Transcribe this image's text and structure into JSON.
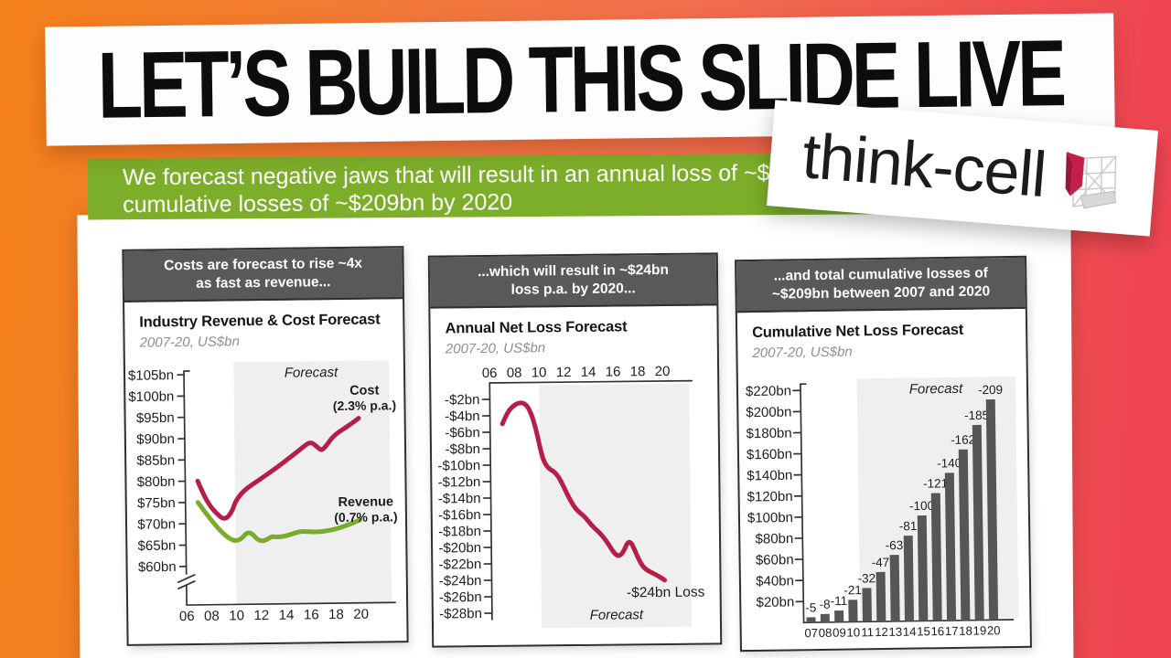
{
  "title_banner": {
    "text": "LET’S BUILD THIS SLIDE LIVE"
  },
  "brand_card": {
    "logo_text": "think-cell"
  },
  "subtitle_banner": {
    "line1": "We forecast negative jaws that will result in an annual loss of ~$24bn",
    "line2": "cumulative losses of ~$209bn by 2020",
    "bg_color": "#7cae2a"
  },
  "colors": {
    "panel_header_bg": "#595959",
    "cost_red": "#b51e47",
    "revenue_green": "#7aac2b",
    "bar_gray": "#565656",
    "forecast_shade": "#efefef",
    "background_left": "#f5811c",
    "background_right": "#ef4252"
  },
  "panels": [
    {
      "header_line1": "Costs are forecast to rise ~4x",
      "header_line2": "as fast as revenue...",
      "title": "Industry Revenue & Cost Forecast",
      "subtitle": "2007-20, US$bn"
    },
    {
      "header_line1": "...which will result in ~$24bn",
      "header_line2": "loss p.a. by 2020...",
      "title": "Annual Net Loss Forecast",
      "subtitle": "2007-20, US$bn"
    },
    {
      "header_line1": "...and total cumulative losses of",
      "header_line2": "~$209bn between 2007 and 2020",
      "title": "Cumulative Net Loss Forecast",
      "subtitle": "2007-20, US$bn"
    }
  ],
  "chart_data": [
    {
      "type": "line",
      "title": "Industry Revenue & Cost Forecast",
      "subtitle": "2007-20, US$bn",
      "y_tick_labels": [
        "$105bn",
        "$100bn",
        "$95bn",
        "$90bn",
        "$85bn",
        "$80bn",
        "$75bn",
        "$70bn",
        "$65bn",
        "$60bn"
      ],
      "y_tick_values": [
        105,
        100,
        95,
        90,
        85,
        80,
        75,
        70,
        65,
        60
      ],
      "x_tick_labels": [
        "06",
        "08",
        "10",
        "12",
        "14",
        "16",
        "18",
        "20"
      ],
      "x_tick_values": [
        2006,
        2008,
        2010,
        2012,
        2014,
        2016,
        2018,
        2020
      ],
      "ylim": [
        60,
        105
      ],
      "axis_break": true,
      "forecast_label": "Forecast",
      "forecast_start_year": 2010,
      "series": [
        {
          "name": "Cost",
          "annotation": "(2.3% p.a.)",
          "color": "#b51e47",
          "points": [
            [
              2007,
              80
            ],
            [
              2007.5,
              76.5
            ],
            [
              2008,
              74
            ],
            [
              2008.5,
              72.3
            ],
            [
              2009,
              71
            ],
            [
              2009.4,
              71.4
            ],
            [
              2009.8,
              73.2
            ],
            [
              2010,
              75
            ],
            [
              2010.5,
              77
            ],
            [
              2011,
              78.3
            ],
            [
              2012,
              80.2
            ],
            [
              2013,
              82.2
            ],
            [
              2014,
              84.3
            ],
            [
              2015,
              86.5
            ],
            [
              2015.8,
              88.4
            ],
            [
              2016.2,
              88.8
            ],
            [
              2016.7,
              87.5
            ],
            [
              2017,
              86.8
            ],
            [
              2017.4,
              88
            ],
            [
              2018,
              90.4
            ],
            [
              2019,
              92.2
            ],
            [
              2020,
              94.3
            ]
          ]
        },
        {
          "name": "Revenue",
          "annotation": "(0.7% p.a.)",
          "color": "#7aac2b",
          "points": [
            [
              2007,
              75
            ],
            [
              2007.5,
              73
            ],
            [
              2008,
              71
            ],
            [
              2008.5,
              69.2
            ],
            [
              2009,
              67.6
            ],
            [
              2009.5,
              66.4
            ],
            [
              2010,
              65.8
            ],
            [
              2010.5,
              66.4
            ],
            [
              2010.9,
              67.8
            ],
            [
              2011.3,
              67.6
            ],
            [
              2011.7,
              66.2
            ],
            [
              2012.1,
              65.7
            ],
            [
              2012.5,
              66
            ],
            [
              2012.9,
              66.8
            ],
            [
              2013.3,
              66.6
            ],
            [
              2014,
              66.8
            ],
            [
              2014.6,
              67.4
            ],
            [
              2015.2,
              67.9
            ],
            [
              2016,
              67.8
            ],
            [
              2016.6,
              67.7
            ],
            [
              2017.2,
              67.9
            ],
            [
              2018,
              68.3
            ],
            [
              2019,
              69.2
            ],
            [
              2020,
              70.4
            ]
          ]
        }
      ]
    },
    {
      "type": "line",
      "title": "Annual Net Loss Forecast",
      "subtitle": "2007-20, US$bn",
      "y_tick_labels": [
        "-$2bn",
        "-$4bn",
        "-$6bn",
        "-$8bn",
        "-$10bn",
        "-$12bn",
        "-$14bn",
        "-$16bn",
        "-$18bn",
        "-$20bn",
        "-$22bn",
        "-$24bn",
        "-$26bn",
        "-$28bn"
      ],
      "y_tick_values": [
        -2,
        -4,
        -6,
        -8,
        -10,
        -12,
        -14,
        -16,
        -18,
        -20,
        -22,
        -24,
        -26,
        -28
      ],
      "x_tick_labels": [
        "06",
        "08",
        "10",
        "12",
        "14",
        "16",
        "18",
        "20"
      ],
      "x_tick_values": [
        2006,
        2008,
        2010,
        2012,
        2014,
        2016,
        2018,
        2020
      ],
      "ylim": [
        -28,
        -2
      ],
      "forecast_label": "Forecast",
      "forecast_start_year": 2010,
      "end_annotation": "-$24bn Loss",
      "series": [
        {
          "name": "Annual Net Loss",
          "color": "#b51e47",
          "points": [
            [
              2007,
              -5
            ],
            [
              2007.4,
              -3.6
            ],
            [
              2007.9,
              -2.8
            ],
            [
              2008.4,
              -2.4
            ],
            [
              2008.9,
              -2.6
            ],
            [
              2009.3,
              -3.6
            ],
            [
              2009.7,
              -5.6
            ],
            [
              2010,
              -7.8
            ],
            [
              2010.3,
              -9.6
            ],
            [
              2010.7,
              -10.5
            ],
            [
              2011.1,
              -10.8
            ],
            [
              2011.5,
              -11.5
            ],
            [
              2011.9,
              -12.7
            ],
            [
              2012.3,
              -14
            ],
            [
              2012.7,
              -15.1
            ],
            [
              2013.1,
              -15.8
            ],
            [
              2013.6,
              -16.4
            ],
            [
              2014.1,
              -17.4
            ],
            [
              2014.6,
              -18.1
            ],
            [
              2015.1,
              -18.9
            ],
            [
              2015.5,
              -19.8
            ],
            [
              2015.9,
              -20.8
            ],
            [
              2016.3,
              -21.3
            ],
            [
              2016.7,
              -20.7
            ],
            [
              2017,
              -19.6
            ],
            [
              2017.3,
              -19.5
            ],
            [
              2017.6,
              -20.5
            ],
            [
              2018,
              -21.9
            ],
            [
              2018.4,
              -22.8
            ],
            [
              2019,
              -23.3
            ],
            [
              2019.5,
              -23.7
            ],
            [
              2020,
              -24.2
            ]
          ]
        }
      ]
    },
    {
      "type": "bar",
      "title": "Cumulative Net Loss Forecast",
      "subtitle": "2007-20, US$bn",
      "categories": [
        "07",
        "08",
        "09",
        "10",
        "11",
        "12",
        "13",
        "14",
        "15",
        "16",
        "17",
        "18",
        "19",
        "20"
      ],
      "values": [
        -5,
        -8,
        -11,
        -21,
        -32,
        -47,
        -63,
        -81,
        -100,
        -121,
        -140,
        -162,
        -185,
        -209
      ],
      "bar_labels": [
        "-5",
        "-8",
        "-11",
        "-21",
        "-32",
        "-47",
        "-63",
        "-81",
        "-100",
        "-121",
        "-140",
        "-162",
        "-185",
        "-209"
      ],
      "y_tick_labels": [
        "$220bn",
        "$200bn",
        "$180bn",
        "$160bn",
        "$140bn",
        "$120bn",
        "$100bn",
        "$80bn",
        "$60bn",
        "$40bn",
        "$20bn"
      ],
      "y_tick_values": [
        220,
        200,
        180,
        160,
        140,
        120,
        100,
        80,
        60,
        40,
        20
      ],
      "ylim": [
        0,
        220
      ],
      "forecast_label": "Forecast",
      "forecast_start_category": "11",
      "bar_color": "#565656"
    }
  ]
}
